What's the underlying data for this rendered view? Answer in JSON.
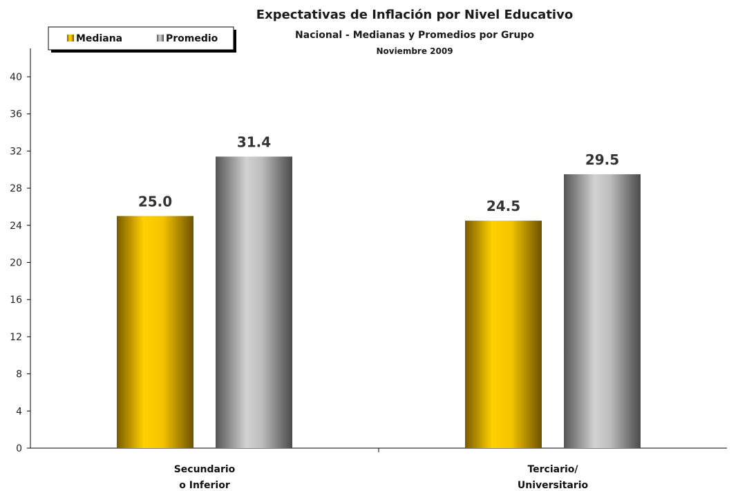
{
  "chart_data": {
    "type": "bar",
    "title": "Expectativas de Inflación por Nivel Educativo",
    "subtitle": "Nacional - Medianas y Promedios por Grupo",
    "subtitle2": "Noviembre 2009",
    "categories": [
      [
        "Secundario",
        "o Inferior"
      ],
      [
        "Terciario/",
        "Universitario"
      ]
    ],
    "series": [
      {
        "name": "Mediana",
        "values": [
          25.0,
          24.5
        ],
        "labels": [
          "25.0",
          "24.5"
        ],
        "color": "#f2c200"
      },
      {
        "name": "Promedio",
        "values": [
          31.4,
          29.5
        ],
        "labels": [
          "31.4",
          "29.5"
        ],
        "color": "#a8a8a8"
      }
    ],
    "ylim": [
      0,
      40
    ],
    "yticks": [
      "0",
      "4",
      "8",
      "12",
      "16",
      "20",
      "24",
      "28",
      "32",
      "36",
      "40"
    ],
    "legend_position": "top-left",
    "grid": false
  }
}
